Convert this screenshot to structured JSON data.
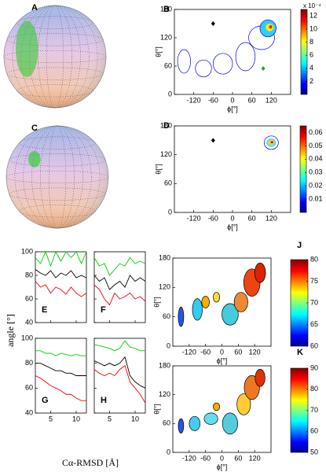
{
  "figure": {
    "xlabel": "Cα-RMSD [Å]",
    "ylabel": "angle [°]"
  },
  "chart_data": [
    {
      "type": "sphere",
      "label": "A"
    },
    {
      "type": "contour",
      "label": "B",
      "xlabel": "ϕ[°]",
      "ylabel": "θ[°]",
      "xlim": [
        -180,
        180
      ],
      "ylim": [
        0,
        180
      ],
      "xticks": [
        -120,
        -60,
        0,
        60,
        120
      ],
      "yticks": [
        0,
        60,
        120,
        180
      ],
      "colorbar": {
        "lim": [
          0,
          13
        ],
        "ticks": [
          2,
          4,
          6,
          8,
          10,
          12
        ],
        "scale_label": "x 10⁻⁴"
      },
      "markers": {
        "x": [
          -60,
          95
        ],
        "y": [
          150,
          55
        ],
        "colors": [
          "#000000",
          "#2e9e2e"
        ]
      }
    },
    {
      "type": "sphere",
      "label": "C"
    },
    {
      "type": "contour",
      "label": "D",
      "xlabel": "ϕ[°]",
      "ylabel": "θ[°]",
      "xlim": [
        -180,
        180
      ],
      "ylim": [
        0,
        180
      ],
      "xticks": [
        -120,
        -60,
        0,
        60,
        120
      ],
      "yticks": [
        0,
        60,
        120,
        180
      ],
      "colorbar": {
        "lim": [
          0,
          0.065
        ],
        "ticks": [
          0.01,
          0.02,
          0.03,
          0.04,
          0.05,
          0.06
        ]
      },
      "markers": {
        "x": [
          -60
        ],
        "y": [
          150
        ],
        "colors": [
          "#000000"
        ]
      }
    },
    {
      "type": "line",
      "label": "E",
      "x": [
        2,
        3,
        4,
        5,
        6,
        7,
        8,
        9,
        10,
        11,
        12
      ],
      "xlim": [
        2,
        12
      ],
      "ylim": [
        40,
        100
      ],
      "xticks": [
        5,
        10
      ],
      "yticks": [
        40,
        60,
        80,
        100
      ],
      "show_xtick_labels": false,
      "show_ytick_labels": true,
      "series": [
        {
          "color": "#00cc00",
          "values": [
            95,
            90,
            100,
            88,
            100,
            92,
            100,
            95,
            100,
            90,
            100
          ]
        },
        {
          "color": "#000000",
          "values": [
            85,
            82,
            80,
            84,
            78,
            82,
            80,
            84,
            78,
            80,
            78
          ]
        },
        {
          "color": "#ee0000",
          "values": [
            75,
            70,
            72,
            65,
            70,
            68,
            64,
            70,
            65,
            62,
            65
          ]
        }
      ]
    },
    {
      "type": "line",
      "label": "F",
      "x": [
        2,
        3,
        4,
        5,
        6,
        7,
        8,
        9,
        10,
        11,
        12
      ],
      "xlim": [
        2,
        12
      ],
      "ylim": [
        40,
        100
      ],
      "xticks": [
        5,
        10
      ],
      "yticks": [
        40,
        60,
        80,
        100
      ],
      "show_xtick_labels": false,
      "show_ytick_labels": false,
      "series": [
        {
          "color": "#00cc00",
          "values": [
            95,
            88,
            90,
            80,
            85,
            90,
            88,
            95,
            90,
            92,
            90
          ]
        },
        {
          "color": "#000000",
          "values": [
            80,
            75,
            78,
            68,
            72,
            75,
            70,
            80,
            75,
            78,
            75
          ]
        },
        {
          "color": "#ee0000",
          "values": [
            72,
            68,
            60,
            55,
            65,
            60,
            62,
            65,
            60,
            62,
            58
          ]
        }
      ]
    },
    {
      "type": "line",
      "label": "G",
      "x": [
        2,
        3,
        4,
        5,
        6,
        7,
        8,
        9,
        10,
        11,
        12
      ],
      "xlim": [
        2,
        12
      ],
      "ylim": [
        40,
        100
      ],
      "xticks": [
        5,
        10
      ],
      "yticks": [
        40,
        60,
        80,
        100
      ],
      "show_xtick_labels": true,
      "show_ytick_labels": true,
      "series": [
        {
          "color": "#00cc00",
          "values": [
            90,
            90,
            88,
            88,
            86,
            88,
            87,
            86,
            87,
            86,
            86
          ]
        },
        {
          "color": "#000000",
          "values": [
            80,
            80,
            78,
            76,
            74,
            74,
            72,
            72,
            70,
            70,
            70
          ]
        },
        {
          "color": "#ee0000",
          "values": [
            70,
            68,
            65,
            62,
            60,
            58,
            55,
            55,
            52,
            50,
            50
          ]
        }
      ]
    },
    {
      "type": "line",
      "label": "H",
      "x": [
        2,
        3,
        4,
        5,
        6,
        7,
        8,
        9,
        10,
        11,
        12
      ],
      "xlim": [
        2,
        12
      ],
      "ylim": [
        40,
        100
      ],
      "xticks": [
        5,
        10
      ],
      "yticks": [
        40,
        60,
        80,
        100
      ],
      "show_xtick_labels": true,
      "show_ytick_labels": false,
      "series": [
        {
          "color": "#00cc00",
          "values": [
            95,
            94,
            93,
            92,
            90,
            92,
            98,
            93,
            92,
            90,
            90
          ]
        },
        {
          "color": "#000000",
          "values": [
            82,
            80,
            78,
            80,
            78,
            80,
            85,
            70,
            65,
            62,
            60
          ]
        },
        {
          "color": "#ee0000",
          "values": [
            75,
            72,
            70,
            72,
            70,
            75,
            78,
            65,
            60,
            55,
            48
          ]
        }
      ]
    },
    {
      "type": "contour",
      "label": "J",
      "xlabel": "ϕ[°]",
      "ylabel": "θ[°]",
      "xlim": [
        -180,
        180
      ],
      "ylim": [
        0,
        180
      ],
      "xticks": [
        -120,
        -60,
        0,
        60,
        120
      ],
      "yticks": [
        0,
        60,
        120,
        180
      ],
      "colorbar": {
        "lim": [
          60,
          80
        ],
        "ticks": [
          60,
          65,
          70,
          75,
          80
        ]
      }
    },
    {
      "type": "contour",
      "label": "K",
      "xlabel": "ϕ[°]",
      "ylabel": "θ[°]",
      "xlim": [
        -180,
        180
      ],
      "ylim": [
        0,
        180
      ],
      "xticks": [
        -120,
        -60,
        0,
        60,
        120
      ],
      "yticks": [
        0,
        60,
        120,
        180
      ],
      "colorbar": {
        "lim": [
          50,
          90
        ],
        "ticks": [
          50,
          60,
          70,
          80,
          90
        ]
      }
    }
  ]
}
